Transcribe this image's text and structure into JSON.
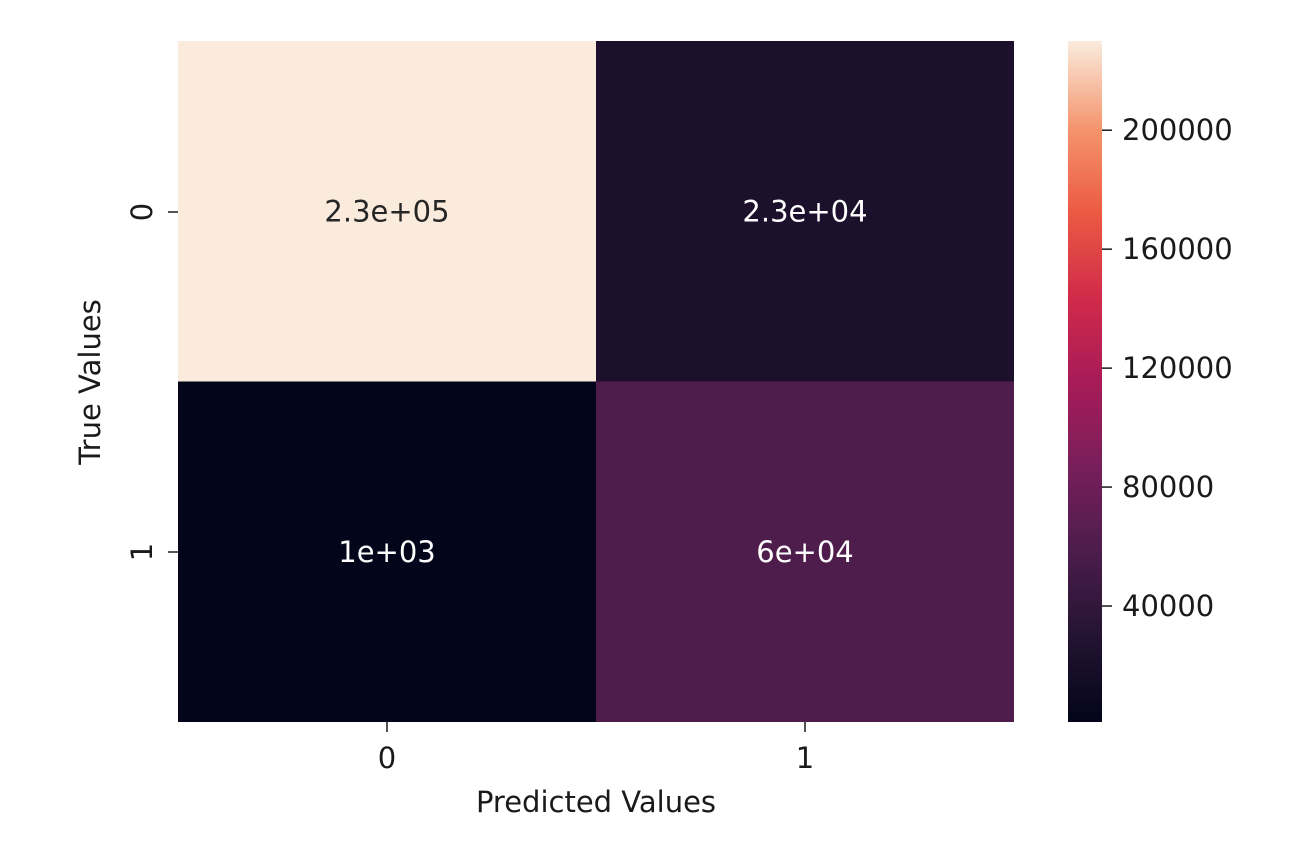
{
  "chart_data": {
    "type": "heatmap",
    "title": "",
    "xlabel": "Predicted Values",
    "ylabel": "True Values",
    "x_categories": [
      "0",
      "1"
    ],
    "y_categories": [
      "0",
      "1"
    ],
    "values": [
      [
        230000,
        23000
      ],
      [
        1000,
        60000
      ]
    ],
    "annotations": [
      [
        "2.3e+05",
        "2.3e+04"
      ],
      [
        "1e+03",
        "6e+04"
      ]
    ],
    "colorbar": {
      "ticks": [
        40000,
        80000,
        120000,
        160000,
        200000
      ],
      "tick_labels": [
        "40000",
        "80000",
        "120000",
        "160000",
        "200000"
      ],
      "range": [
        1000,
        230000
      ]
    },
    "colormap": "rocket"
  }
}
